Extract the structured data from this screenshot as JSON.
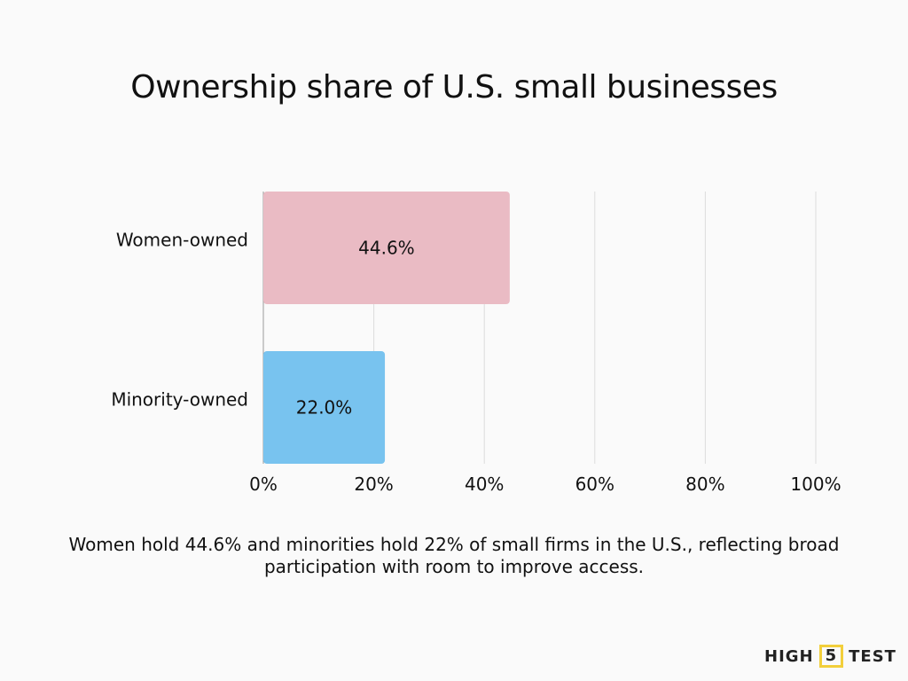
{
  "chart_data": {
    "type": "bar",
    "orientation": "horizontal",
    "title": "Ownership share of U.S. small businesses",
    "categories": [
      "Women-owned",
      "Minority-owned"
    ],
    "values": [
      44.6,
      22.0
    ],
    "data_labels": [
      "44.6%",
      "22.0%"
    ],
    "colors": [
      "#eabbc4",
      "#78c3ef"
    ],
    "xlim": [
      0,
      100
    ],
    "x_ticks": [
      0,
      20,
      40,
      60,
      80,
      100
    ],
    "x_tick_labels": [
      "0%",
      "20%",
      "40%",
      "60%",
      "80%",
      "100%"
    ],
    "grid": "vertical",
    "legend": "none"
  },
  "caption": "Women hold 44.6% and minorities hold 22% of small firms in the U.S., reflecting broad participation with room to improve access.",
  "logo": {
    "left": "HIGH",
    "middle": "5",
    "right": "TEST"
  }
}
